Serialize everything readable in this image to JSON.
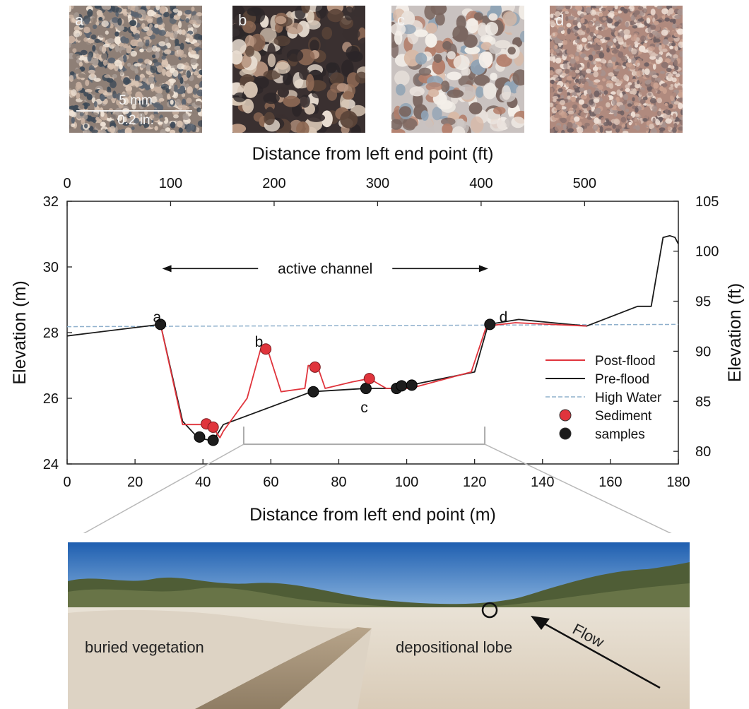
{
  "thumbnails": [
    {
      "letter": "a",
      "palette": [
        "#8e7f76",
        "#c7b0a0",
        "#5b6470",
        "#d9c4b3",
        "#3e4a57",
        "#a89c95",
        "#efe3d6"
      ],
      "grain": 7
    },
    {
      "letter": "b",
      "palette": [
        "#3a3030",
        "#b79580",
        "#d8c6b4",
        "#5a4438",
        "#e8dcd0",
        "#8f6a55",
        "#2c2628"
      ],
      "grain": 16
    },
    {
      "letter": "c",
      "palette": [
        "#c9c2c0",
        "#e9e2dc",
        "#b37e6a",
        "#8fa3b5",
        "#f4efe9",
        "#7a6660",
        "#d8b9a6"
      ],
      "grain": 15
    },
    {
      "letter": "d",
      "palette": [
        "#b08a7e",
        "#d8c0b4",
        "#8e7470",
        "#c9a08f",
        "#efe0d6",
        "#6e5f62",
        "#a7928e"
      ],
      "grain": 6
    }
  ],
  "scalebar": {
    "top": "5 mm",
    "bottom": "0.2 in."
  },
  "chart_data": {
    "type": "line",
    "xlabel": "Distance from left end point (m)",
    "x2label": "Distance from left end point (ft)",
    "ylabel": "Elevation (m)",
    "y2label": "Elevation (ft)",
    "xlim": [
      0,
      180
    ],
    "ylim": [
      24,
      32
    ],
    "x_ticks": [
      0,
      20,
      40,
      60,
      80,
      100,
      120,
      140,
      160,
      180
    ],
    "y_ticks": [
      24,
      26,
      28,
      30,
      32
    ],
    "x2_ticks": [
      0,
      100,
      200,
      300,
      400,
      500
    ],
    "y2_ticks": [
      80,
      85,
      90,
      95,
      100,
      105
    ],
    "series": [
      {
        "name": "Pre-flood",
        "color": "#1a1a1a",
        "x": [
          0,
          27.5,
          34,
          38.5,
          43,
          46,
          72,
          88,
          97,
          101,
          120,
          124,
          133,
          153,
          168,
          172,
          175.5,
          177.5,
          179,
          180
        ],
        "y": [
          27.9,
          28.25,
          25.3,
          24.8,
          24.7,
          25.2,
          26.2,
          26.3,
          26.3,
          26.4,
          26.8,
          28.25,
          28.4,
          28.2,
          28.8,
          28.8,
          30.9,
          30.95,
          30.9,
          30.7
        ]
      },
      {
        "name": "Post-flood",
        "color": "#e0343c",
        "x": [
          27.5,
          34,
          37,
          41,
          43,
          45,
          46,
          53,
          57,
          59,
          63,
          70,
          71,
          74,
          76,
          84,
          89,
          94,
          97,
          101,
          119,
          123.5,
          132,
          153
        ],
        "y": [
          28.25,
          25.2,
          25.2,
          25.2,
          25.1,
          24.8,
          25.0,
          26.0,
          27.5,
          27.5,
          26.2,
          26.3,
          27.0,
          26.9,
          26.3,
          26.5,
          26.6,
          26.3,
          26.3,
          26.3,
          26.8,
          28.2,
          28.3,
          28.2
        ]
      },
      {
        "name": "High Water",
        "color": "#8fb0cc",
        "x": [
          0,
          180
        ],
        "y": [
          28.18,
          28.25
        ]
      }
    ],
    "samples": [
      {
        "x": 27.5,
        "y": 28.25,
        "kind": "pre"
      },
      {
        "x": 39,
        "y": 24.82,
        "kind": "pre"
      },
      {
        "x": 43,
        "y": 24.72,
        "kind": "pre"
      },
      {
        "x": 72.5,
        "y": 26.2,
        "kind": "pre"
      },
      {
        "x": 88,
        "y": 26.3,
        "kind": "pre"
      },
      {
        "x": 97,
        "y": 26.3,
        "kind": "pre"
      },
      {
        "x": 98.5,
        "y": 26.38,
        "kind": "pre"
      },
      {
        "x": 101.5,
        "y": 26.4,
        "kind": "pre"
      },
      {
        "x": 124.5,
        "y": 28.25,
        "kind": "pre"
      },
      {
        "x": 41,
        "y": 25.22,
        "kind": "post"
      },
      {
        "x": 43,
        "y": 25.12,
        "kind": "post"
      },
      {
        "x": 58.5,
        "y": 27.5,
        "kind": "post"
      },
      {
        "x": 73,
        "y": 26.95,
        "kind": "post"
      },
      {
        "x": 89,
        "y": 26.6,
        "kind": "post"
      }
    ],
    "point_labels": [
      {
        "text": "a",
        "x": 26.5,
        "y": 28.45
      },
      {
        "text": "b",
        "x": 56.5,
        "y": 27.7
      },
      {
        "text": "c",
        "x": 87.5,
        "y": 25.7
      },
      {
        "text": "d",
        "x": 128.5,
        "y": 28.45
      }
    ],
    "annotation": {
      "text": "active channel",
      "x_start": 28,
      "x_end": 124,
      "y": 29.95
    },
    "legend": {
      "position": "right",
      "items": [
        {
          "label": "Post-flood",
          "kind": "line",
          "color": "#e0343c"
        },
        {
          "label": "Pre-flood",
          "kind": "line",
          "color": "#1a1a1a"
        },
        {
          "label": "High Water",
          "kind": "dash",
          "color": "#8fb0cc"
        },
        {
          "label": "Sediment",
          "kind": "dot",
          "color": "#e0343c"
        },
        {
          "label": "samples",
          "kind": "dot",
          "color": "#1a1a1a"
        }
      ]
    },
    "zoom": {
      "x_start": 52,
      "x_end": 123,
      "y": 24.6
    }
  },
  "photo": {
    "labels": {
      "buried": "buried vegetation",
      "lobe": "depositional lobe",
      "flow": "Flow"
    }
  }
}
